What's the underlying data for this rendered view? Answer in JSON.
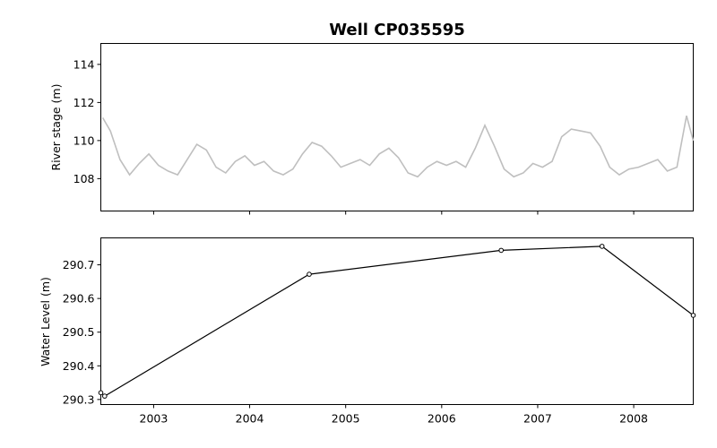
{
  "figure": {
    "title": "Well CP035595"
  },
  "chart_data": [
    {
      "type": "line",
      "xlabel": "",
      "ylabel": "River stage (m)",
      "xlim": [
        2002.45,
        2008.62
      ],
      "ylim": [
        106.3,
        115.1
      ],
      "yticks": [
        108,
        110,
        112,
        114
      ],
      "xticks": [
        2003,
        2004,
        2005,
        2006,
        2007,
        2008
      ],
      "x_tick_labels_shown": false,
      "series": [
        {
          "color": "#bfbfbf",
          "x": [
            2002.47,
            2002.55,
            2002.65,
            2002.75,
            2002.85,
            2002.95,
            2003.05,
            2003.15,
            2003.25,
            2003.35,
            2003.45,
            2003.55,
            2003.65,
            2003.75,
            2003.85,
            2003.95,
            2004.05,
            2004.15,
            2004.25,
            2004.35,
            2004.45,
            2004.55,
            2004.65,
            2004.75,
            2004.85,
            2004.95,
            2005.05,
            2005.15,
            2005.25,
            2005.35,
            2005.45,
            2005.55,
            2005.65,
            2005.75,
            2005.85,
            2005.95,
            2006.05,
            2006.15,
            2006.25,
            2006.35,
            2006.45,
            2006.55,
            2006.65,
            2006.75,
            2006.85,
            2006.95,
            2007.05,
            2007.15,
            2007.25,
            2007.35,
            2007.45,
            2007.55,
            2007.65,
            2007.75,
            2007.85,
            2007.95,
            2008.05,
            2008.15,
            2008.25,
            2008.35,
            2008.45,
            2008.55,
            2008.62
          ],
          "y": [
            111.2,
            110.5,
            109.0,
            108.2,
            108.8,
            109.3,
            108.7,
            108.4,
            108.2,
            109.0,
            109.8,
            109.5,
            108.6,
            108.3,
            108.9,
            109.2,
            108.7,
            108.9,
            108.4,
            108.2,
            108.5,
            109.3,
            109.9,
            109.7,
            109.2,
            108.6,
            108.8,
            109.0,
            108.7,
            109.3,
            109.6,
            109.1,
            108.3,
            108.1,
            108.6,
            108.9,
            108.7,
            108.9,
            108.6,
            109.6,
            110.8,
            109.7,
            108.5,
            108.1,
            108.3,
            108.8,
            108.6,
            108.9,
            110.2,
            110.6,
            110.5,
            110.4,
            109.7,
            108.6,
            108.2,
            108.5,
            108.6,
            108.8,
            109.0,
            108.4,
            108.6,
            111.3,
            110.0
          ]
        }
      ]
    },
    {
      "type": "line",
      "xlabel": "",
      "ylabel": "Water Level (m)",
      "xlim": [
        2002.45,
        2008.62
      ],
      "ylim": [
        290.285,
        290.78
      ],
      "yticks": [
        290.3,
        290.4,
        290.5,
        290.6,
        290.7
      ],
      "xticks": [
        2003,
        2004,
        2005,
        2006,
        2007,
        2008
      ],
      "x_tick_labels": [
        "2003",
        "2004",
        "2005",
        "2006",
        "2007",
        "2008"
      ],
      "y_tick_labels": [
        "290.3",
        "290.4",
        "290.5",
        "290.6",
        "290.7"
      ],
      "series": [
        {
          "color": "#000000",
          "marker": "open-circle",
          "x": [
            2002.45,
            2002.49,
            2004.62,
            2006.62,
            2007.67,
            2008.62
          ],
          "y": [
            290.32,
            290.31,
            290.672,
            290.743,
            290.755,
            290.55
          ]
        }
      ]
    }
  ],
  "top_y_tick_labels": [
    "108",
    "110",
    "112",
    "114"
  ]
}
